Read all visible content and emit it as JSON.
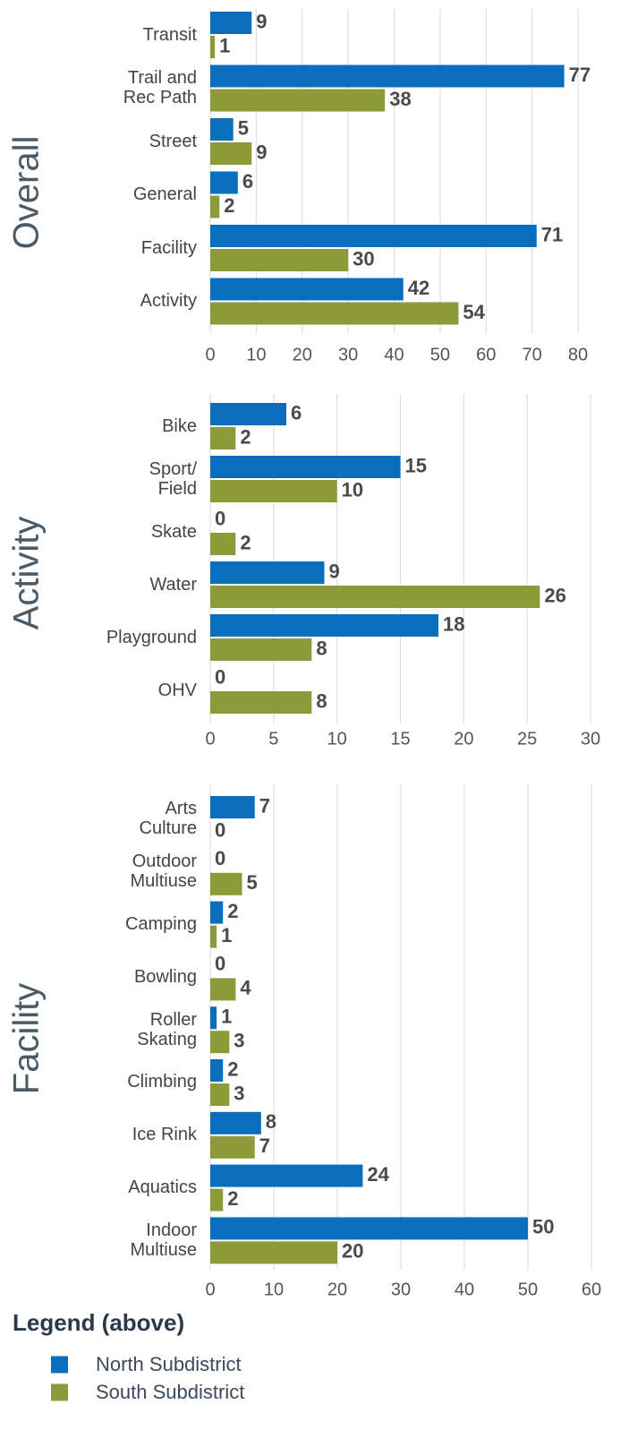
{
  "legend_title": "Legend (above)",
  "chart_data": [
    {
      "type": "bar",
      "orientation": "horizontal",
      "title": "Overall",
      "categories": [
        "Transit",
        "Trail and\nRec Path",
        "Street",
        "General",
        "Facility",
        "Activity"
      ],
      "series": [
        {
          "name": "North Subdistrict",
          "color": "#0a6ebd",
          "values": [
            9,
            77,
            5,
            6,
            71,
            42
          ]
        },
        {
          "name": "South Subdistrict",
          "color": "#8c9a3a",
          "values": [
            1,
            38,
            9,
            2,
            30,
            54
          ]
        }
      ],
      "xlim": [
        0,
        80
      ],
      "xticks": [
        0,
        10,
        20,
        30,
        40,
        50,
        60,
        70,
        80
      ],
      "grid": true
    },
    {
      "type": "bar",
      "orientation": "horizontal",
      "title": "Activity",
      "categories": [
        "Bike",
        "Sport/\nField",
        "Skate",
        "Water",
        "Playground",
        "OHV"
      ],
      "series": [
        {
          "name": "North Subdistrict",
          "color": "#0a6ebd",
          "values": [
            6,
            15,
            0,
            9,
            18,
            0
          ]
        },
        {
          "name": "South Subdistrict",
          "color": "#8c9a3a",
          "values": [
            2,
            10,
            2,
            26,
            8,
            8
          ]
        }
      ],
      "xlim": [
        0,
        30
      ],
      "xticks": [
        0,
        5,
        10,
        15,
        20,
        25,
        30
      ],
      "grid": true
    },
    {
      "type": "bar",
      "orientation": "horizontal",
      "title": "Facility",
      "categories": [
        "Arts\nCulture",
        "Outdoor\nMultiuse",
        "Camping",
        "Bowling",
        "Roller\nSkating",
        "Climbing",
        "Ice Rink",
        "Aquatics",
        "Indoor\nMultiuse"
      ],
      "series": [
        {
          "name": "North Subdistrict",
          "color": "#0a6ebd",
          "values": [
            7,
            0,
            2,
            0,
            1,
            2,
            8,
            24,
            50
          ]
        },
        {
          "name": "South Subdistrict",
          "color": "#8c9a3a",
          "values": [
            0,
            5,
            1,
            4,
            3,
            3,
            7,
            2,
            20
          ]
        }
      ],
      "xlim": [
        0,
        60
      ],
      "xticks": [
        0,
        10,
        20,
        30,
        40,
        50,
        60
      ],
      "grid": true
    }
  ]
}
